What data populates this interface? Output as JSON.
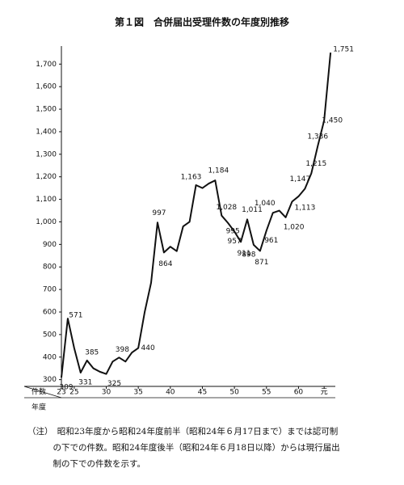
{
  "chart_data": {
    "type": "line",
    "title": "第１図　合併届出受理件数の年度別推移",
    "ylabel": "件数",
    "xlabel": "年度",
    "x": [
      23,
      24,
      25,
      26,
      27,
      28,
      29,
      30,
      31,
      32,
      33,
      34,
      35,
      36,
      37,
      38,
      39,
      40,
      41,
      42,
      43,
      44,
      45,
      46,
      47,
      48,
      49,
      50,
      51,
      52,
      53,
      54,
      55,
      56,
      57,
      58,
      59,
      60,
      61,
      62,
      63,
      64,
      65
    ],
    "values": [
      309,
      571,
      440,
      331,
      385,
      350,
      335,
      325,
      380,
      398,
      380,
      420,
      440,
      600,
      730,
      997,
      864,
      890,
      870,
      980,
      1000,
      1163,
      1150,
      1170,
      1184,
      1028,
      995,
      957,
      911,
      1011,
      898,
      871,
      961,
      1040,
      1050,
      1020,
      1090,
      1113,
      1147,
      1215,
      1336,
      1450,
      1751
    ],
    "value_labels": [
      "309",
      "571",
      null,
      "331",
      "385",
      null,
      null,
      "325",
      null,
      "398",
      null,
      null,
      "440",
      null,
      null,
      "997",
      "864",
      null,
      null,
      null,
      null,
      "1,163",
      null,
      null,
      "1,184",
      "1,028",
      "995",
      "957",
      "911",
      "1,011",
      "898",
      "871",
      "961",
      "1,040",
      null,
      "1,020",
      null,
      "1,113",
      "1,147",
      "1,215",
      "1,336",
      "1,450",
      "1,751"
    ],
    "color": "#111111",
    "xlim": [
      22.5,
      66.5
    ],
    "xticks": [
      23,
      25,
      30,
      35,
      40,
      45,
      50,
      55,
      60,
      {
        "value": 64,
        "label": "元"
      }
    ],
    "ylim": [
      270,
      1780
    ],
    "yticks": [
      300,
      400,
      500,
      600,
      700,
      800,
      900,
      {
        "value": 1000,
        "label": "1,000"
      },
      {
        "value": 1100,
        "label": "1,100"
      },
      {
        "value": 1200,
        "label": "1,200"
      },
      {
        "value": 1300,
        "label": "1,300"
      },
      {
        "value": 1400,
        "label": "1,400"
      },
      {
        "value": 1500,
        "label": "1,500"
      },
      {
        "value": 1600,
        "label": "1,600"
      },
      {
        "value": 1700,
        "label": "1,700"
      }
    ],
    "grid": false,
    "note": [
      "（注）　昭和23年度から昭和24年度前半（昭和24年６月17日まで）までは認可制",
      "　　　の下での件数。昭和24年度後半（昭和24年６月18日以降）からは現行届出",
      "　　　制の下での件数を示す。"
    ]
  }
}
